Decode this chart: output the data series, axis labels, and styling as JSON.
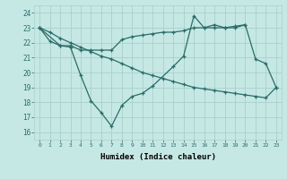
{
  "xlabel": "Humidex (Indice chaleur)",
  "background_color": "#c5e8e5",
  "grid_color": "#a8d0cc",
  "line_color": "#2a6b68",
  "xlim": [
    -0.5,
    23.5
  ],
  "ylim": [
    15.5,
    24.5
  ],
  "yticks": [
    16,
    17,
    18,
    19,
    20,
    21,
    22,
    23,
    24
  ],
  "xticks": [
    0,
    1,
    2,
    3,
    4,
    5,
    6,
    7,
    8,
    9,
    10,
    11,
    12,
    13,
    14,
    15,
    16,
    17,
    18,
    19,
    20,
    21,
    22,
    23
  ],
  "xtick_labels": [
    "0",
    "1",
    "2",
    "3",
    "4",
    "5",
    "6",
    "7",
    "8",
    "9",
    "10",
    "11",
    "12",
    "13",
    "14",
    "15",
    "16",
    "17",
    "18",
    "19",
    "20",
    "21",
    "22",
    "23"
  ],
  "line1_x": [
    0,
    1,
    2,
    3,
    4,
    5,
    6,
    7,
    8,
    9,
    10,
    11,
    13,
    14,
    15,
    16,
    17,
    18,
    19,
    20,
    21,
    22,
    23
  ],
  "line1_y": [
    23.0,
    22.1,
    21.8,
    21.7,
    19.8,
    18.1,
    17.3,
    16.4,
    17.8,
    18.4,
    18.6,
    19.1,
    20.4,
    21.1,
    23.8,
    23.0,
    23.2,
    23.0,
    23.0,
    23.2,
    20.9,
    20.6,
    19.0
  ],
  "line2_x": [
    0,
    1,
    2,
    3,
    4,
    5,
    6,
    7,
    8,
    9,
    10,
    11,
    12,
    13,
    14,
    15,
    16,
    17,
    18,
    19,
    20,
    21,
    22,
    23
  ],
  "line2_y": [
    23.0,
    22.7,
    22.3,
    22.0,
    21.7,
    21.4,
    21.1,
    20.9,
    20.6,
    20.3,
    20.0,
    19.8,
    19.6,
    19.4,
    19.2,
    19.0,
    18.9,
    18.8,
    18.7,
    18.6,
    18.5,
    18.4,
    18.3,
    19.0
  ],
  "line3_x": [
    0,
    2,
    3,
    4,
    5,
    6,
    7,
    8,
    9,
    10,
    11,
    12,
    13,
    14,
    15,
    16,
    17,
    18,
    19,
    20
  ],
  "line3_y": [
    23.0,
    21.8,
    21.8,
    21.5,
    21.5,
    21.5,
    21.5,
    22.2,
    22.4,
    22.5,
    22.6,
    22.7,
    22.7,
    22.8,
    23.0,
    23.0,
    23.0,
    23.0,
    23.1,
    23.2
  ]
}
